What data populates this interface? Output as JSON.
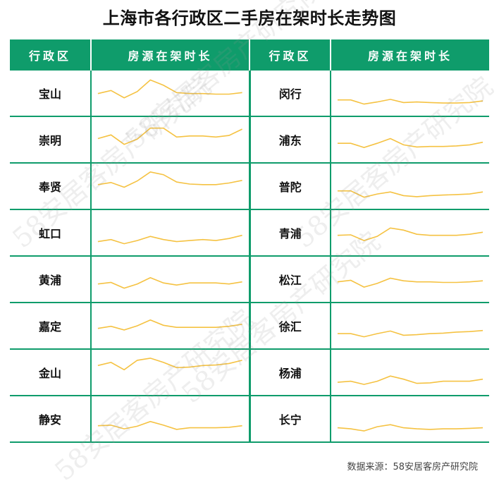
{
  "title": "上海市各行政区二手房在架时长走势图",
  "headers": [
    "行政区",
    "房源在架时长",
    "行政区",
    "房源在架时长"
  ],
  "footer": "数据来源：58安居客房产研究院",
  "watermark": "58安居客房产研究院",
  "colors": {
    "header_bg": "#0f9c6b",
    "border": "#0f9c6b",
    "line": "#f5c242"
  },
  "chart_data": {
    "type": "line",
    "title": "上海市各行政区二手房在架时长走势图",
    "districts": [
      {
        "name": "宝山",
        "values": [
          36,
          30,
          44,
          32,
          10,
          20,
          34,
          36,
          36,
          37,
          37,
          34
        ]
      },
      {
        "name": "崇明",
        "values": [
          33,
          26,
          44,
          34,
          13,
          13,
          30,
          28,
          28,
          30,
          27,
          15
        ]
      },
      {
        "name": "奉贤",
        "values": [
          32,
          28,
          37,
          25,
          8,
          13,
          27,
          31,
          32,
          32,
          29,
          24
        ]
      },
      {
        "name": "虹口",
        "values": [
          52,
          48,
          56,
          50,
          42,
          48,
          52,
          50,
          48,
          50,
          46,
          40
        ]
      },
      {
        "name": "黄浦",
        "values": [
          44,
          41,
          52,
          44,
          32,
          42,
          46,
          42,
          42,
          42,
          44,
          40
        ]
      },
      {
        "name": "嘉定",
        "values": [
          40,
          36,
          43,
          35,
          24,
          34,
          38,
          38,
          38,
          38,
          36,
          32
        ]
      },
      {
        "name": "金山",
        "values": [
          22,
          16,
          30,
          12,
          8,
          16,
          26,
          25,
          22,
          21,
          18,
          12
        ]
      },
      {
        "name": "静安",
        "values": [
          48,
          47,
          54,
          49,
          40,
          47,
          55,
          52,
          52,
          52,
          51,
          48
        ]
      },
      {
        "name": "闵行",
        "values": [
          48,
          48,
          56,
          52,
          47,
          53,
          52,
          53,
          54,
          54,
          53,
          50
        ]
      },
      {
        "name": "浦东",
        "values": [
          42,
          42,
          50,
          42,
          33,
          45,
          49,
          48,
          48,
          47,
          45,
          40
        ]
      },
      {
        "name": "普陀",
        "values": [
          44,
          44,
          56,
          50,
          46,
          53,
          55,
          53,
          52,
          51,
          50,
          46
        ]
      },
      {
        "name": "青浦",
        "values": [
          40,
          39,
          50,
          42,
          26,
          30,
          38,
          40,
          40,
          40,
          38,
          34
        ]
      },
      {
        "name": "松江",
        "values": [
          40,
          37,
          50,
          43,
          33,
          38,
          40,
          40,
          41,
          41,
          40,
          38
        ]
      },
      {
        "name": "徐汇",
        "values": [
          50,
          50,
          56,
          50,
          45,
          53,
          52,
          50,
          49,
          47,
          46,
          44
        ]
      },
      {
        "name": "杨浦",
        "values": [
          54,
          52,
          58,
          52,
          42,
          48,
          56,
          55,
          52,
          52,
          52,
          48
        ]
      },
      {
        "name": "长宁",
        "values": [
          52,
          54,
          58,
          50,
          46,
          52,
          54,
          55,
          54,
          54,
          53,
          52
        ]
      }
    ]
  }
}
